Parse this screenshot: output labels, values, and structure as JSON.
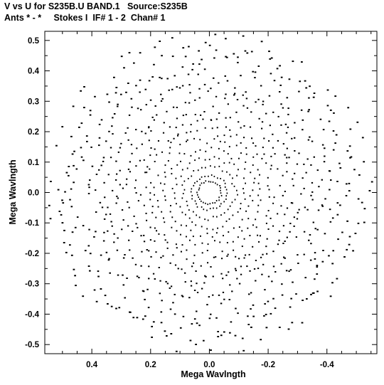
{
  "chart_data": {
    "type": "scatter",
    "title_line1": "V vs U for S235B.U BAND.1   Source:S235B",
    "title_line2": "Ants * - *     Stokes I  IF# 1 - 2  Chan# 1",
    "xlabel": "Mega Wavlngth",
    "ylabel": "Mega Wavlngth",
    "xlim": [
      0.56,
      -0.57
    ],
    "ylim": [
      -0.53,
      0.53
    ],
    "x_ticks": [
      0.4,
      0.2,
      0.0,
      -0.2,
      -0.4
    ],
    "x_tick_labels": [
      "0.4",
      "0.2",
      "0.0",
      "-0.2",
      "-0.4"
    ],
    "y_ticks": [
      0.5,
      0.4,
      0.3,
      0.2,
      0.1,
      0.0,
      -0.1,
      -0.2,
      -0.3,
      -0.4,
      -0.5
    ],
    "y_tick_labels": [
      "0.5",
      "0.4",
      "0.3",
      "0.2",
      "0.1",
      "0.0",
      "-0.1",
      "-0.2",
      "-0.3",
      "-0.4",
      "-0.5"
    ],
    "grid": false,
    "marker_color": "#000000",
    "uv_tracks": [
      {
        "radius": 0.04
      },
      {
        "radius": 0.06
      },
      {
        "radius": 0.09
      },
      {
        "radius": 0.12
      },
      {
        "radius": 0.15
      },
      {
        "radius": 0.18
      },
      {
        "radius": 0.21
      },
      {
        "radius": 0.24
      },
      {
        "radius": 0.27
      },
      {
        "radius": 0.3
      },
      {
        "radius": 0.33
      },
      {
        "radius": 0.36
      },
      {
        "radius": 0.4
      },
      {
        "radius": 0.44
      },
      {
        "radius": 0.48
      },
      {
        "radius": 0.52
      }
    ]
  }
}
